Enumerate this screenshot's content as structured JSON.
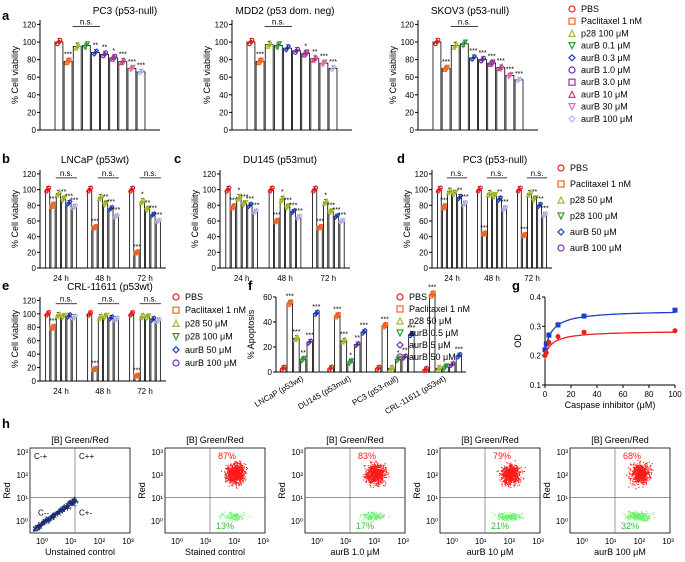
{
  "panel_letters": [
    "a",
    "b",
    "c",
    "d",
    "e",
    "f",
    "g",
    "h"
  ],
  "colors": {
    "PBS": "#e8201c",
    "Paclitaxel 1 nM": "#f26522",
    "p28 100 μM": "#a6b92c",
    "p28 50 μM": "#a6b92c",
    "aurB 0.1 μM": "#2f9a3a",
    "aurB 0.3 μM": "#1d3fb8",
    "aurB 1.0 μM": "#6a2ea6",
    "aurB 3.0 μM": "#a0309a",
    "aurB 10 μM": "#d03a8a",
    "aurB 30 μM": "#e86aa8",
    "aurB 100 μM": "#b9b6ee",
    "p28 100 μM (b)": "#2f9a3a",
    "aurB 50 μM": "#1d3fb8",
    "aurB 100 μM (b)": "#7a2ec0",
    "aurB 0.5 μM": "#2f9a3a",
    "aurB 5 μM": "#6a2ea6",
    "aurB 50 μM (f)": "#a0309a",
    "g_red": "#e8201c",
    "g_blue": "#1a3fd0",
    "flow_red": "#ff1a1a",
    "flow_green": "#6cf06c",
    "flow_navy": "#1a2a6e"
  },
  "chart_data": [
    {
      "panel": "a",
      "type": "bar",
      "title": "PC3 (p53-null)",
      "ylabel": "% Cell viability",
      "ylim": [
        0,
        125
      ],
      "yticks": [
        0,
        20,
        40,
        60,
        80,
        100,
        120
      ],
      "series": [
        {
          "name": "PBS",
          "values": [
            100
          ]
        },
        {
          "name": "Paclitaxel 1 nM",
          "values": [
            78
          ]
        },
        {
          "name": "p28 100 μM",
          "values": [
            95
          ]
        },
        {
          "name": "aurB 0.1 μM",
          "values": [
            96
          ]
        },
        {
          "name": "aurB 0.3 μM",
          "values": [
            88
          ]
        },
        {
          "name": "aurB 1.0 μM",
          "values": [
            86
          ]
        },
        {
          "name": "aurB 3.0 μM",
          "values": [
            82
          ]
        },
        {
          "name": "aurB 10 μM",
          "values": [
            78
          ]
        },
        {
          "name": "aurB 30 μM",
          "values": [
            70
          ]
        },
        {
          "name": "aurB 100 μM",
          "values": [
            66
          ]
        }
      ],
      "sig": [
        "",
        "***",
        "",
        "",
        "**",
        "**",
        "*",
        "***",
        "***",
        "***"
      ],
      "ns_label": "n.s."
    },
    {
      "panel": "a2",
      "type": "bar",
      "title": "MDD2  (p53 dom. neg)",
      "ylabel": "% Cell viability",
      "ylim": [
        0,
        125
      ],
      "yticks": [
        0,
        20,
        40,
        60,
        80,
        100,
        120
      ],
      "series": [
        {
          "name": "PBS",
          "values": [
            100
          ]
        },
        {
          "name": "Paclitaxel 1 nM",
          "values": [
            78
          ]
        },
        {
          "name": "p28 100 μM",
          "values": [
            97
          ]
        },
        {
          "name": "aurB 0.1 μM",
          "values": [
            96
          ]
        },
        {
          "name": "aurB 0.3 μM",
          "values": [
            93
          ]
        },
        {
          "name": "aurB 1.0 μM",
          "values": [
            90
          ]
        },
        {
          "name": "aurB 3.0 μM",
          "values": [
            87
          ]
        },
        {
          "name": "aurB 10 μM",
          "values": [
            81
          ]
        },
        {
          "name": "aurB 30 μM",
          "values": [
            76
          ]
        },
        {
          "name": "aurB 100 μM",
          "values": [
            70
          ]
        }
      ],
      "sig": [
        "",
        "***",
        "",
        "",
        "",
        "",
        "*",
        "**",
        "***",
        "***"
      ],
      "ns_label": "n.s."
    },
    {
      "panel": "a3",
      "type": "bar",
      "title": "SKOV3 (p53-null)",
      "ylabel": "% Cell viability",
      "ylim": [
        0,
        125
      ],
      "yticks": [
        0,
        20,
        40,
        60,
        80,
        100,
        120
      ],
      "series": [
        {
          "name": "PBS",
          "values": [
            100
          ]
        },
        {
          "name": "Paclitaxel 1 nM",
          "values": [
            70
          ]
        },
        {
          "name": "p28 100 μM",
          "values": [
            96
          ]
        },
        {
          "name": "aurB 0.1 μM",
          "values": [
            98
          ]
        },
        {
          "name": "aurB 0.3 μM",
          "values": [
            82
          ]
        },
        {
          "name": "aurB 1.0 μM",
          "values": [
            80
          ]
        },
        {
          "name": "aurB 3.0 μM",
          "values": [
            76
          ]
        },
        {
          "name": "aurB 10 μM",
          "values": [
            71
          ]
        },
        {
          "name": "aurB 30 μM",
          "values": [
            62
          ]
        },
        {
          "name": "aurB 100 μM",
          "values": [
            57
          ]
        }
      ],
      "sig": [
        "",
        "***",
        "",
        "",
        "***",
        "***",
        "***",
        "***",
        "***",
        "***"
      ],
      "ns_label": "n.s."
    },
    {
      "panel": "b",
      "type": "bar",
      "title": "LNCaP (p53wt)",
      "ylabel": "% Cell viability",
      "ylim": [
        0,
        125
      ],
      "yticks": [
        0,
        20,
        40,
        60,
        80,
        100,
        120
      ],
      "categories": [
        "24 h",
        "48 h",
        "72 h"
      ],
      "series": [
        {
          "name": "PBS",
          "values": [
            100,
            100,
            100
          ]
        },
        {
          "name": "Paclitaxel 1 nM",
          "values": [
            80,
            52,
            20
          ]
        },
        {
          "name": "p28 50 μM",
          "values": [
            95,
            90,
            85
          ]
        },
        {
          "name": "p28 100 μM",
          "values": [
            88,
            82,
            75
          ]
        },
        {
          "name": "aurB 50 μM",
          "values": [
            83,
            76,
            68
          ]
        },
        {
          "name": "aurB 100 μM",
          "values": [
            78,
            66,
            60
          ]
        }
      ],
      "sig": [
        [
          "",
          "***",
          "",
          "**",
          "***",
          "***"
        ],
        [
          "",
          "***",
          "",
          "**",
          "***",
          "***"
        ],
        [
          "",
          "***",
          "*",
          "**",
          "***",
          "***"
        ]
      ],
      "ns_label": "n.s."
    },
    {
      "panel": "c",
      "type": "bar",
      "title": "DU145 (p53mut)",
      "ylabel": "% Cell viability",
      "ylim": [
        0,
        125
      ],
      "yticks": [
        0,
        20,
        40,
        60,
        80,
        100,
        120
      ],
      "categories": [
        "24 h",
        "48 h",
        "72 h"
      ],
      "series": [
        {
          "name": "PBS",
          "values": [
            100,
            100,
            100
          ]
        },
        {
          "name": "Paclitaxel 1 nM",
          "values": [
            78,
            60,
            52
          ]
        },
        {
          "name": "p28 50 μM",
          "values": [
            90,
            88,
            84
          ]
        },
        {
          "name": "p28 100 μM",
          "values": [
            82,
            78,
            72
          ]
        },
        {
          "name": "aurB 50 μM",
          "values": [
            80,
            72,
            66
          ]
        },
        {
          "name": "aurB 100 μM",
          "values": [
            72,
            65,
            60
          ]
        }
      ],
      "sig": [
        [
          "",
          "***",
          "*",
          "***",
          "***",
          "***"
        ],
        [
          "",
          "***",
          "*",
          "***",
          "***",
          "***"
        ],
        [
          "",
          "***",
          "*",
          "***",
          "***",
          "***"
        ]
      ],
      "ns_label": ""
    },
    {
      "panel": "d",
      "type": "bar",
      "title": "PC3 (p53-null)",
      "ylabel": "% Cell viability",
      "ylim": [
        0,
        125
      ],
      "yticks": [
        0,
        20,
        40,
        60,
        80,
        100,
        120
      ],
      "categories": [
        "24 h",
        "48 h",
        "72 h"
      ],
      "series": [
        {
          "name": "PBS",
          "values": [
            100,
            100,
            100
          ]
        },
        {
          "name": "Paclitaxel 1 nM",
          "values": [
            78,
            44,
            42
          ]
        },
        {
          "name": "p28 50 μM",
          "values": [
            98,
            95,
            95
          ]
        },
        {
          "name": "p28 100 μM",
          "values": [
            95,
            92,
            88
          ]
        },
        {
          "name": "aurB 50 μM",
          "values": [
            90,
            88,
            80
          ]
        },
        {
          "name": "aurB 100 μM",
          "values": [
            82,
            76,
            68
          ]
        }
      ],
      "sig": [
        [
          "",
          "***",
          "",
          "",
          "**",
          "***"
        ],
        [
          "",
          "***",
          "",
          "",
          "**",
          "***"
        ],
        [
          "",
          "***",
          "",
          "**",
          "***",
          "***"
        ]
      ],
      "ns_label": "n.s."
    },
    {
      "panel": "e",
      "type": "bar",
      "title": "CRL-11611 (p53wt)",
      "ylabel": "% Cell viability",
      "ylim": [
        0,
        125
      ],
      "yticks": [
        0,
        20,
        40,
        60,
        80,
        100,
        120
      ],
      "categories": [
        "24 h",
        "48 h",
        "72 h"
      ],
      "series": [
        {
          "name": "PBS",
          "values": [
            100,
            100,
            100
          ]
        },
        {
          "name": "Paclitaxel 1 nM",
          "values": [
            80,
            18,
            8
          ]
        },
        {
          "name": "p28 50 μM",
          "values": [
            98,
            95,
            96
          ]
        },
        {
          "name": "p28 100 μM",
          "values": [
            96,
            96,
            95
          ]
        },
        {
          "name": "aurB 50 μM",
          "values": [
            97,
            94,
            92
          ]
        },
        {
          "name": "aurB 100 μM",
          "values": [
            95,
            92,
            90
          ]
        }
      ],
      "sig": [
        [
          "",
          "***",
          "",
          "",
          "",
          ""
        ],
        [
          "",
          "***",
          "",
          "",
          "",
          ""
        ],
        [
          "",
          "***",
          "",
          "",
          "",
          ""
        ]
      ],
      "ns_label": "n.s."
    },
    {
      "panel": "f",
      "type": "bar",
      "ylabel": "% Apoptosis",
      "ylim": [
        0,
        60
      ],
      "yticks": [
        0,
        20,
        40,
        60
      ],
      "categories": [
        "LNCaP (p53wt)",
        "DU145 (p53mut)",
        "PC3 (p53-null)",
        "CRL-11611 (p53wt)"
      ],
      "series": [
        {
          "name": "PBS",
          "values": [
            3,
            3,
            3,
            2
          ]
        },
        {
          "name": "Paclitaxel 1 nM",
          "values": [
            55,
            45,
            37,
            62
          ]
        },
        {
          "name": "p28 50 μM",
          "values": [
            27,
            25,
            3,
            3
          ]
        },
        {
          "name": "aurB 0.5 μM",
          "values": [
            10,
            8,
            10,
            4
          ]
        },
        {
          "name": "aurB 5 μM",
          "values": [
            24,
            22,
            12,
            6
          ]
        },
        {
          "name": "aurB 50 μM",
          "values": [
            47,
            32,
            30,
            13
          ]
        }
      ],
      "sig": [
        [
          "",
          "***",
          "***",
          "**",
          "***",
          "***"
        ],
        [
          "",
          "***",
          "***",
          "*",
          "**",
          "***"
        ],
        [
          "",
          "***",
          "",
          "*",
          "**",
          "***"
        ],
        [
          "",
          "***",
          "",
          "",
          "",
          "***"
        ]
      ]
    },
    {
      "panel": "g",
      "type": "scatter",
      "ylabel": "OD",
      "xlabel": "Caspase inhibitor (μM)",
      "xlim": [
        0,
        100
      ],
      "ylim": [
        0.1,
        0.4
      ],
      "xticks": [
        0,
        20,
        40,
        60,
        80,
        100
      ],
      "yticks": [
        0.1,
        0.2,
        0.3,
        0.4
      ],
      "series": [
        {
          "x": [
            0,
            1,
            3,
            10,
            30,
            100
          ],
          "y": [
            0.22,
            0.24,
            0.27,
            0.305,
            0.335,
            0.355
          ],
          "err": [
            0.012,
            0.01,
            0.01,
            0.01,
            0.008,
            0.008
          ]
        },
        {
          "x": [
            0,
            1,
            3,
            10,
            30,
            100
          ],
          "y": [
            0.2,
            0.21,
            0.245,
            0.265,
            0.28,
            0.285
          ],
          "err": [
            0.012,
            0.012,
            0.01,
            0.01,
            0.008,
            0.008
          ]
        }
      ]
    }
  ],
  "legends": {
    "a": [
      "PBS",
      "Paclitaxel 1 nM",
      "p28 100 μM",
      "aurB 0.1 μM",
      "aurB 0.3 μM",
      "aurB 1.0 μM",
      "aurB 3.0 μM",
      "aurB 10 μM",
      "aurB 30 μM",
      "aurB 100 μM"
    ],
    "d": [
      "PBS",
      "Paclitaxel 1 nM",
      "p28 50 μM",
      "p28 100 μM",
      "aurB 50 μM",
      "aurB 100 μM"
    ],
    "e": [
      "PBS",
      "Paclitaxel 1 nM",
      "p28 50 μM",
      "p28 100 μM",
      "aurB 50 μM",
      "aurB 100 μM"
    ],
    "f": [
      "PBS",
      "Paclitaxel 1 nM",
      "p28 50 μM",
      "aurB 0.5 μM",
      "aurB 5 μM",
      "aurB 50 μM"
    ]
  },
  "flow": {
    "title": "[B] Green/Red",
    "ylabel": "Red",
    "tick_x": [
      "10⁰",
      "10¹",
      "10²",
      "10³"
    ],
    "tick_y": [
      "10⁰",
      "10¹",
      "10²",
      "10³"
    ],
    "quadrants": [
      "C-+",
      "C++",
      "C--",
      "C+-"
    ],
    "panels": [
      {
        "xlabel": "Unstained control",
        "top_pct": "",
        "bottom_pct": ""
      },
      {
        "xlabel": "Stained control",
        "top_pct": "87%",
        "bottom_pct": "13%"
      },
      {
        "xlabel": "aurB 1.0 μM",
        "top_pct": "83%",
        "bottom_pct": "17%"
      },
      {
        "xlabel": "aurB 10 μM",
        "top_pct": "79%",
        "bottom_pct": "21%"
      },
      {
        "xlabel": "aurB 100 μM",
        "top_pct": "68%",
        "bottom_pct": "32%"
      }
    ]
  }
}
